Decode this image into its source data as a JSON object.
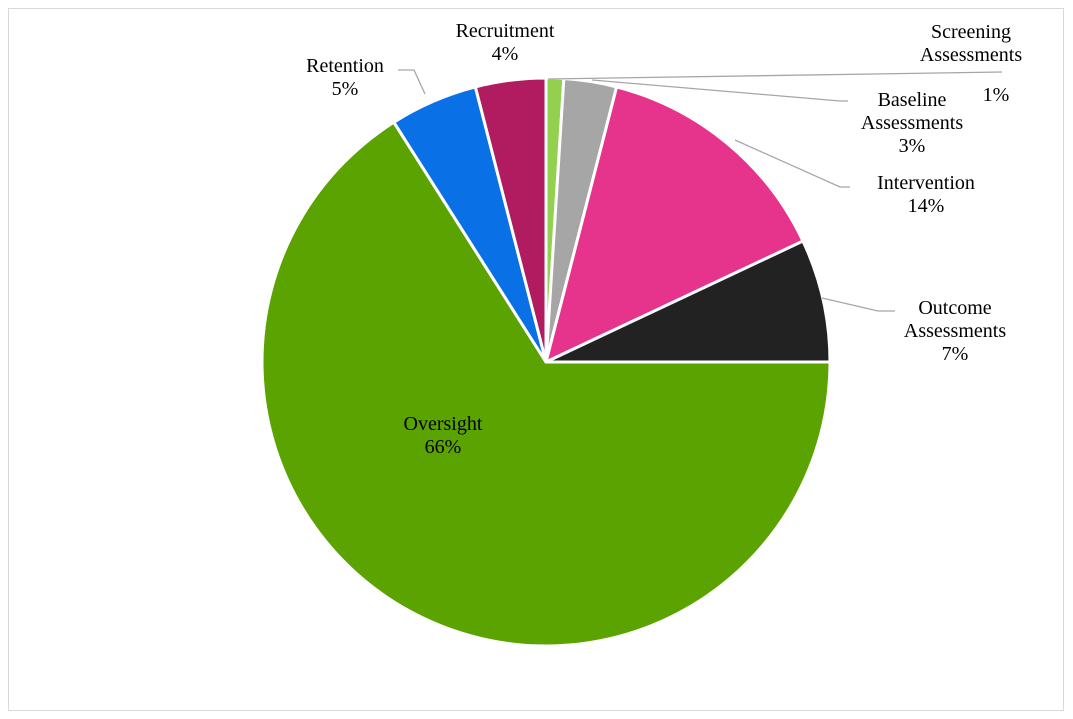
{
  "chart_data": {
    "type": "pie",
    "title": "",
    "slices": [
      {
        "label": "Screening Assessments",
        "label_lines": [
          "Screening",
          "Assessments"
        ],
        "value_label": "1%",
        "value": 1,
        "color": "#92d050"
      },
      {
        "label": "Baseline Assessments",
        "label_lines": [
          "Baseline",
          "Assessments"
        ],
        "value_label": "3%",
        "value": 3,
        "color": "#a6a6a6"
      },
      {
        "label": "Intervention",
        "label_lines": [
          "Intervention"
        ],
        "value_label": "14%",
        "value": 14,
        "color": "#e6348c"
      },
      {
        "label": "Outcome Assessments",
        "label_lines": [
          "Outcome",
          "Assessments"
        ],
        "value_label": "7%",
        "value": 7,
        "color": "#222222"
      },
      {
        "label": "Oversight",
        "label_lines": [
          "Oversight"
        ],
        "value_label": "66%",
        "value": 66,
        "color": "#5ba300"
      },
      {
        "label": "Retention",
        "label_lines": [
          "Retention"
        ],
        "value_label": "5%",
        "value": 5,
        "color": "#0a70e6"
      },
      {
        "label": "Recruitment",
        "label_lines": [
          "Recruitment"
        ],
        "value_label": "4%",
        "value": 4,
        "color": "#b11b5f"
      }
    ],
    "data_labels": "category name and percentage",
    "legend": "none"
  }
}
